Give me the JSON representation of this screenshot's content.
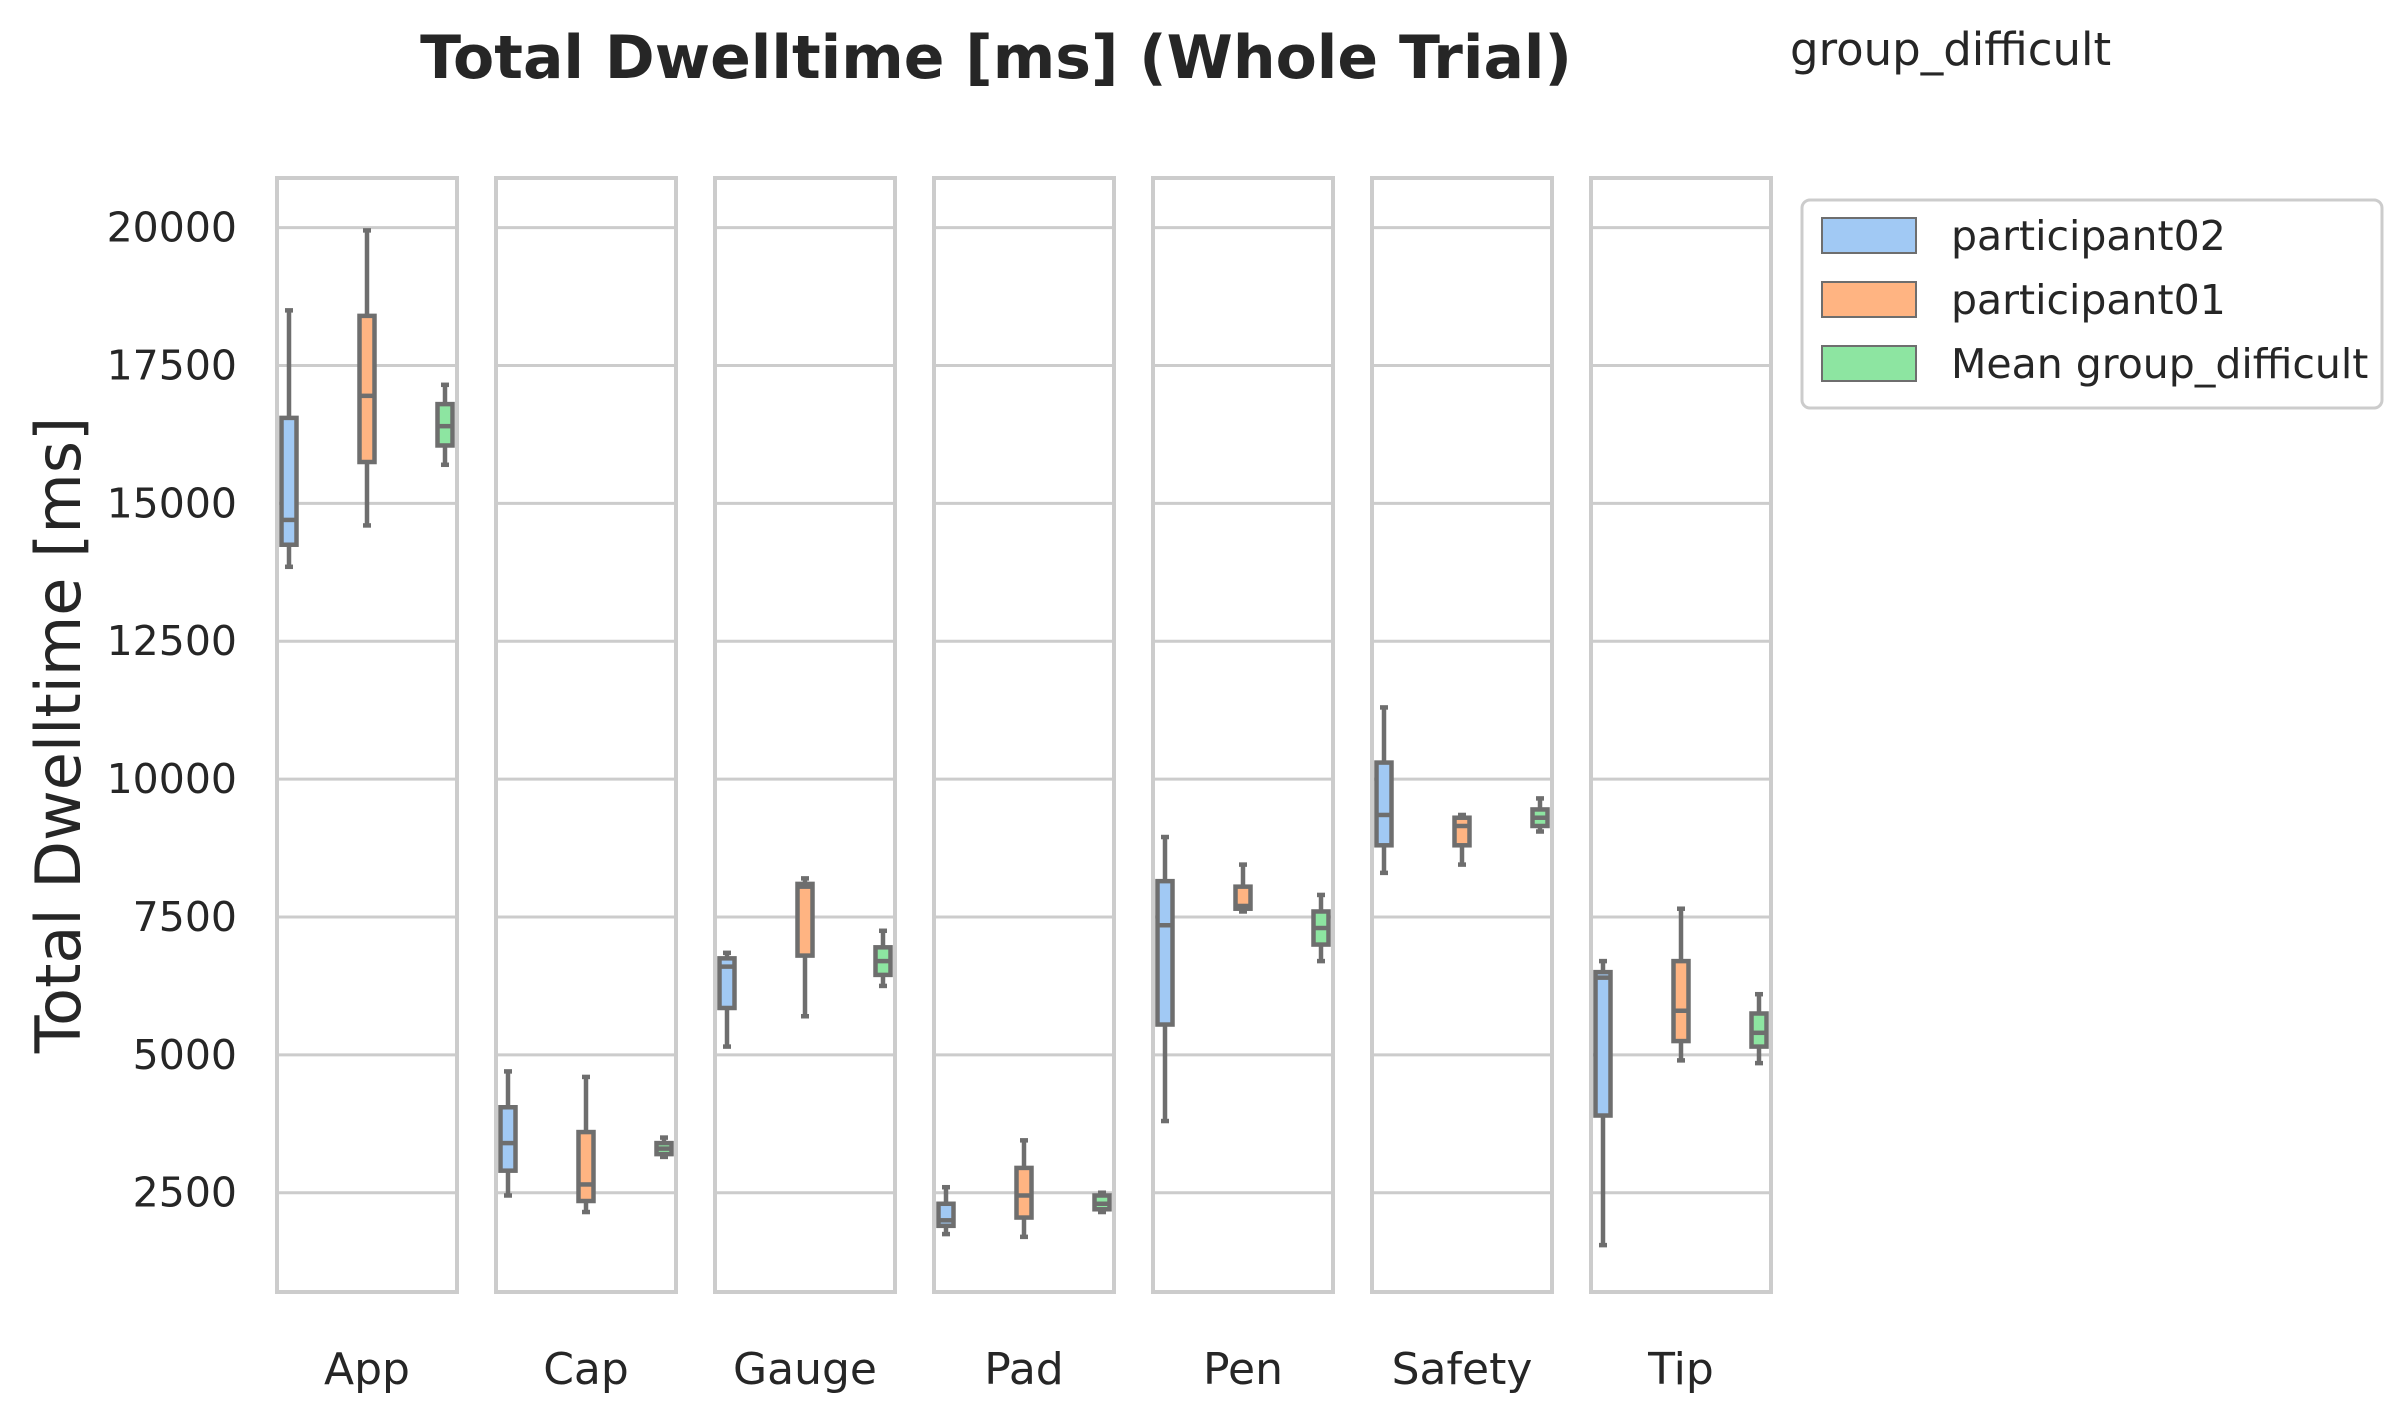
{
  "chart_data": {
    "type": "box",
    "title": "Total Dwelltime [ms] (Whole Trial)",
    "subtitle": "group_difficult",
    "ylabel": "Total Dwelltime [ms]",
    "xlabel": "",
    "ylim": [
      700,
      20900
    ],
    "yticks": [
      2500,
      5000,
      7500,
      10000,
      12500,
      15000,
      17500,
      20000
    ],
    "ytick_labels": [
      "2500",
      "5000",
      "7500",
      "10000",
      "12500",
      "15000",
      "17500",
      "20000"
    ],
    "grid": true,
    "legend_position": "outside top-right",
    "categories": [
      "App",
      "Cap",
      "Gauge",
      "Pad",
      "Pen",
      "Safety",
      "Tip"
    ],
    "series": [
      {
        "name": "participant02",
        "color": "#a1c9f4",
        "boxes": [
          {
            "min": 13850,
            "q1": 14250,
            "median": 14700,
            "q3": 16550,
            "max": 18500
          },
          {
            "min": 2450,
            "q1": 2900,
            "median": 3400,
            "q3": 4050,
            "max": 4700
          },
          {
            "min": 5150,
            "q1": 5850,
            "median": 6600,
            "q3": 6750,
            "max": 6850
          },
          {
            "min": 1750,
            "q1": 1900,
            "median": 2000,
            "q3": 2300,
            "max": 2600
          },
          {
            "min": 3800,
            "q1": 5550,
            "median": 7350,
            "q3": 8150,
            "max": 8950
          },
          {
            "min": 8300,
            "q1": 8800,
            "median": 9350,
            "q3": 10300,
            "max": 11300
          },
          {
            "min": 1550,
            "q1": 3900,
            "median": 6400,
            "q3": 6500,
            "max": 6700
          }
        ]
      },
      {
        "name": "participant01",
        "color": "#ffb482",
        "boxes": [
          {
            "min": 14600,
            "q1": 15750,
            "median": 16950,
            "q3": 18400,
            "max": 19950
          },
          {
            "min": 2150,
            "q1": 2350,
            "median": 2650,
            "q3": 3600,
            "max": 4600
          },
          {
            "min": 5700,
            "q1": 6800,
            "median": 8050,
            "q3": 8100,
            "max": 8200
          },
          {
            "min": 1700,
            "q1": 2050,
            "median": 2450,
            "q3": 2950,
            "max": 3450
          },
          {
            "min": 7600,
            "q1": 7650,
            "median": 7700,
            "q3": 8050,
            "max": 8450
          },
          {
            "min": 8450,
            "q1": 8800,
            "median": 9150,
            "q3": 9300,
            "max": 9350
          },
          {
            "min": 4900,
            "q1": 5250,
            "median": 5800,
            "q3": 6700,
            "max": 7650
          }
        ]
      },
      {
        "name": "Mean group_difficult",
        "color": "#8de5a1",
        "boxes": [
          {
            "min": 15700,
            "q1": 16050,
            "median": 16400,
            "q3": 16800,
            "max": 17150
          },
          {
            "min": 3150,
            "q1": 3200,
            "median": 3300,
            "q3": 3400,
            "max": 3500
          },
          {
            "min": 6250,
            "q1": 6450,
            "median": 6700,
            "q3": 6950,
            "max": 7250
          },
          {
            "min": 2150,
            "q1": 2200,
            "median": 2300,
            "q3": 2450,
            "max": 2500
          },
          {
            "min": 6700,
            "q1": 7000,
            "median": 7300,
            "q3": 7600,
            "max": 7900
          },
          {
            "min": 9050,
            "q1": 9150,
            "median": 9300,
            "q3": 9450,
            "max": 9650
          },
          {
            "min": 4850,
            "q1": 5150,
            "median": 5400,
            "q3": 5750,
            "max": 6100
          }
        ]
      }
    ],
    "style": {
      "box_edge_color": "#6e6e6e",
      "grid_color": "#cccccc",
      "frame_color": "#cccccc",
      "text_color": "#262626"
    }
  }
}
